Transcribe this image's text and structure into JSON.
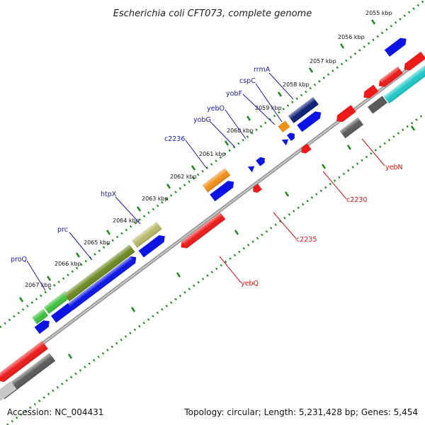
{
  "title": "Escherichia coli CFT073, complete genome",
  "footer": {
    "accession": "Accession: NC_004431",
    "stats": "Topology: circular; Length: 5,231,428 bp; Genes: 5,454"
  },
  "colors": {
    "forward_label": "#1a1aa6",
    "reverse_label": "#d11414",
    "backbone": "#8c8c8c",
    "ticks": "#1f8a1f",
    "blue": "#0a14e6",
    "navy": "#0c1f78",
    "red": "#ee1a1a",
    "cyan": "#1ec8c8",
    "gray": "#5a5a5a",
    "green": "#3fc23f",
    "olive": "#6c8a22",
    "khaki": "#b9b96a",
    "orange": "#f0911a"
  },
  "kbp_labels": [
    "2055 kbp",
    "2056 kbp",
    "2057 kbp",
    "2058 kbp",
    "2059 kbp",
    "2060 kbp",
    "2061 kbp",
    "2062 kbp",
    "2063 kbp",
    "2064 kbp",
    "2065 kbp",
    "2066 kbp",
    "2067 kbp"
  ],
  "forward_genes": [
    "rrmA",
    "cspC",
    "yobF",
    "yebO",
    "yobG",
    "c2236",
    "htpX",
    "prc",
    "proQ"
  ],
  "reverse_genes": [
    "yebN",
    "c2230",
    "c2235",
    "yebQ"
  ]
}
